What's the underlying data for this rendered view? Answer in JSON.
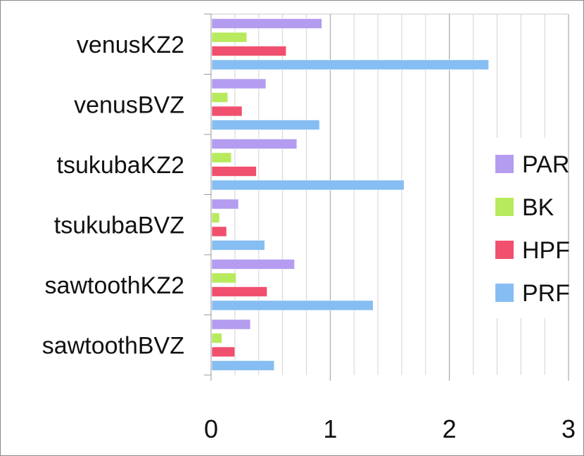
{
  "chart_data": {
    "type": "bar",
    "orientation": "horizontal",
    "title": "",
    "xlabel": "",
    "ylabel": "",
    "categories": [
      "venusKZ2",
      "venusBVZ",
      "tsukubaKZ2",
      "tsukubaBVZ",
      "sawtoothKZ2",
      "sawtoothBVZ"
    ],
    "series": [
      {
        "name": "PAR",
        "color": "#b49cf0",
        "values": [
          0.93,
          0.46,
          0.72,
          0.23,
          0.7,
          0.33
        ]
      },
      {
        "name": "BK",
        "color": "#b7ea5c",
        "values": [
          0.3,
          0.14,
          0.17,
          0.07,
          0.21,
          0.09
        ]
      },
      {
        "name": "HPF",
        "color": "#f0506e",
        "values": [
          0.63,
          0.26,
          0.38,
          0.13,
          0.47,
          0.2
        ]
      },
      {
        "name": "PRF",
        "color": "#86bdf2",
        "values": [
          2.33,
          0.91,
          1.62,
          0.45,
          1.36,
          0.53
        ]
      }
    ],
    "xlim": [
      0,
      3
    ],
    "xticks": [
      "0",
      "1",
      "2",
      "3"
    ],
    "xtick_values": [
      0,
      1,
      2,
      3
    ],
    "minor_gridline_step": 0.2,
    "grid": true,
    "legend_position": "right"
  }
}
